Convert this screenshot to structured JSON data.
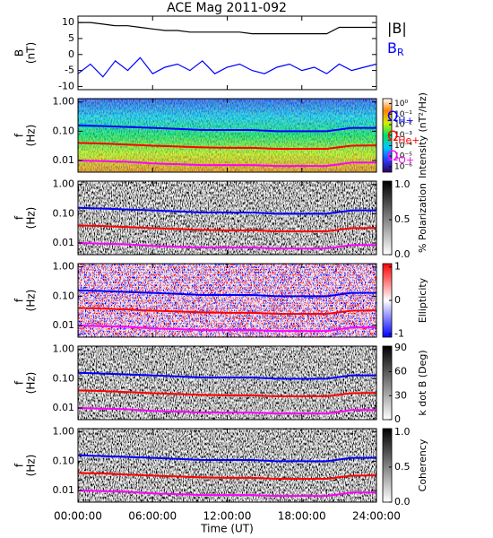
{
  "chart_data": [
    {
      "type": "line",
      "title": "ACE Mag 2011-092",
      "ylabel": [
        "B",
        "(nT)"
      ],
      "x": [
        0,
        1,
        2,
        3,
        4,
        5,
        6,
        7,
        8,
        9,
        10,
        11,
        12,
        13,
        14,
        15,
        16,
        17,
        18,
        19,
        20,
        21,
        22,
        23,
        24
      ],
      "xlim": [
        0,
        24
      ],
      "ylim": [
        -11,
        12
      ],
      "yticks": [
        -10,
        -5,
        0,
        5,
        10
      ],
      "series": [
        {
          "name": "|B|",
          "color": "#000000",
          "values": [
            10,
            10,
            9.5,
            9,
            9,
            8.5,
            8,
            7.5,
            7.5,
            7,
            7,
            7,
            7,
            7,
            6.5,
            6.5,
            6.5,
            6.5,
            6.5,
            6.5,
            6.5,
            8.5,
            8.5,
            8.5,
            8.5
          ]
        },
        {
          "name": "B",
          "name_sub": "R",
          "color": "#0000ff",
          "values": [
            -6,
            -3,
            -7,
            -2,
            -5,
            -1,
            -6,
            -4,
            -3,
            -5,
            -2,
            -6,
            -4,
            -3,
            -5,
            -6,
            -4,
            -3,
            -5,
            -4,
            -6,
            -3,
            -5,
            -4,
            -3
          ]
        }
      ]
    },
    {
      "type": "spectrogram",
      "ylabel": [
        "f",
        "(Hz)"
      ],
      "ylog": true,
      "ylim": [
        0.004,
        1.3
      ],
      "yticks": [
        {
          "value": 1,
          "label": "1.00"
        },
        {
          "value": 0.1,
          "label": "0.10"
        },
        {
          "value": 0.01,
          "label": "0.01"
        }
      ],
      "xlim": [
        0,
        24
      ],
      "x": [
        0,
        2,
        4,
        6,
        8,
        10,
        12,
        14,
        16,
        18,
        20,
        22,
        24
      ],
      "colorbar": {
        "label": "Intensity (nT²/Hz)",
        "log": true,
        "lim": [
          3e-07,
          3
        ],
        "ticks": [
          {
            "value": 1,
            "label": "10⁰"
          },
          {
            "value": 0.1,
            "label": "10⁻¹"
          },
          {
            "value": 0.01,
            "label": "10⁻²"
          },
          {
            "value": 0.001,
            "label": "10⁻³"
          },
          {
            "value": 0.0001,
            "label": "10⁻⁴"
          },
          {
            "value": 1e-05,
            "label": "10⁻⁵"
          },
          {
            "value": 1e-06,
            "label": "10⁻⁶"
          }
        ],
        "colors": [
          "#30005a",
          "#2040ff",
          "#00c8ff",
          "#00e060",
          "#d0f000",
          "#ff8000",
          "#ffffff"
        ]
      },
      "series": [
        {
          "name": "Ω",
          "name_sub": "H+",
          "color": "#0000ff",
          "values": [
            0.16,
            0.15,
            0.14,
            0.13,
            0.12,
            0.11,
            0.11,
            0.11,
            0.1,
            0.1,
            0.1,
            0.13,
            0.13
          ]
        },
        {
          "name": "Ω",
          "name_sub": "He+",
          "color": "#ff0000",
          "values": [
            0.04,
            0.038,
            0.035,
            0.032,
            0.03,
            0.028,
            0.027,
            0.027,
            0.025,
            0.025,
            0.025,
            0.032,
            0.033
          ]
        },
        {
          "name": "Ω",
          "name_sub": "O+",
          "color": "#ff00ff",
          "values": [
            0.01,
            0.0095,
            0.009,
            0.008,
            0.0075,
            0.007,
            0.007,
            0.007,
            0.0065,
            0.0065,
            0.0065,
            0.0085,
            0.0085
          ]
        }
      ]
    },
    {
      "type": "spectrogram",
      "ylabel": [
        "f",
        "(Hz)"
      ],
      "ylog": true,
      "ylim": [
        0.004,
        1.3
      ],
      "yticks": [
        {
          "value": 1,
          "label": "1.00"
        },
        {
          "value": 0.1,
          "label": "0.10"
        },
        {
          "value": 0.01,
          "label": "0.01"
        }
      ],
      "xlim": [
        0,
        24
      ],
      "x": [
        0,
        2,
        4,
        6,
        8,
        10,
        12,
        14,
        16,
        18,
        20,
        22,
        24
      ],
      "colorbar": {
        "label": "% Polarization",
        "lim": [
          0,
          1.05
        ],
        "ticks": [
          {
            "value": 0,
            "label": "0.0"
          },
          {
            "value": 0.5,
            "label": "0.5"
          },
          {
            "value": 1,
            "label": "1.0"
          }
        ],
        "colors": [
          "#ffffff",
          "#000000"
        ]
      },
      "series": [
        {
          "color": "#0000ff",
          "values": [
            0.16,
            0.15,
            0.14,
            0.13,
            0.12,
            0.11,
            0.11,
            0.11,
            0.1,
            0.1,
            0.1,
            0.13,
            0.13
          ]
        },
        {
          "color": "#ff0000",
          "values": [
            0.04,
            0.038,
            0.035,
            0.032,
            0.03,
            0.028,
            0.027,
            0.027,
            0.025,
            0.025,
            0.025,
            0.032,
            0.033
          ]
        },
        {
          "color": "#ff00ff",
          "values": [
            0.01,
            0.0095,
            0.009,
            0.008,
            0.0075,
            0.007,
            0.007,
            0.007,
            0.0065,
            0.0065,
            0.0065,
            0.0085,
            0.0085
          ]
        }
      ]
    },
    {
      "type": "spectrogram",
      "ylabel": [
        "f",
        "(Hz)"
      ],
      "ylog": true,
      "ylim": [
        0.004,
        1.3
      ],
      "yticks": [
        {
          "value": 1,
          "label": "1.00"
        },
        {
          "value": 0.1,
          "label": "0.10"
        },
        {
          "value": 0.01,
          "label": "0.01"
        }
      ],
      "xlim": [
        0,
        24
      ],
      "x": [
        0,
        2,
        4,
        6,
        8,
        10,
        12,
        14,
        16,
        18,
        20,
        22,
        24
      ],
      "colorbar": {
        "label": "Ellipticity",
        "lim": [
          -1.1,
          1.1
        ],
        "ticks": [
          -1,
          0,
          1
        ],
        "colors": [
          "#0000ff",
          "#ffffff",
          "#ff0000"
        ]
      },
      "series": [
        {
          "color": "#0000ff",
          "values": [
            0.16,
            0.15,
            0.14,
            0.13,
            0.12,
            0.11,
            0.11,
            0.11,
            0.1,
            0.1,
            0.1,
            0.13,
            0.13
          ]
        },
        {
          "color": "#ff0000",
          "values": [
            0.04,
            0.038,
            0.035,
            0.032,
            0.03,
            0.028,
            0.027,
            0.027,
            0.025,
            0.025,
            0.025,
            0.032,
            0.033
          ]
        },
        {
          "color": "#ff00ff",
          "values": [
            0.01,
            0.0095,
            0.009,
            0.008,
            0.0075,
            0.007,
            0.007,
            0.007,
            0.0065,
            0.0065,
            0.0065,
            0.0085,
            0.0085
          ]
        }
      ]
    },
    {
      "type": "spectrogram",
      "ylabel": [
        "f",
        "(Hz)"
      ],
      "ylog": true,
      "ylim": [
        0.004,
        1.3
      ],
      "yticks": [
        {
          "value": 1,
          "label": "1.00"
        },
        {
          "value": 0.1,
          "label": "0.10"
        },
        {
          "value": 0.01,
          "label": "0.01"
        }
      ],
      "xlim": [
        0,
        24
      ],
      "x": [
        0,
        2,
        4,
        6,
        8,
        10,
        12,
        14,
        16,
        18,
        20,
        22,
        24
      ],
      "colorbar": {
        "label": "k dot B (Deg)",
        "lim": [
          0,
          92
        ],
        "ticks": [
          0,
          30,
          60,
          90
        ],
        "colors": [
          "#ffffff",
          "#000000"
        ]
      },
      "series": [
        {
          "color": "#0000ff",
          "values": [
            0.16,
            0.15,
            0.14,
            0.13,
            0.12,
            0.11,
            0.11,
            0.11,
            0.1,
            0.1,
            0.1,
            0.13,
            0.13
          ]
        },
        {
          "color": "#ff0000",
          "values": [
            0.04,
            0.038,
            0.035,
            0.032,
            0.03,
            0.028,
            0.027,
            0.027,
            0.025,
            0.025,
            0.025,
            0.032,
            0.033
          ]
        },
        {
          "color": "#ff00ff",
          "values": [
            0.01,
            0.0095,
            0.009,
            0.008,
            0.0075,
            0.007,
            0.007,
            0.007,
            0.0065,
            0.0065,
            0.0065,
            0.0085,
            0.0085
          ]
        }
      ]
    },
    {
      "type": "spectrogram",
      "ylabel": [
        "f",
        "(Hz)"
      ],
      "ylog": true,
      "ylim": [
        0.004,
        1.3
      ],
      "yticks": [
        {
          "value": 1,
          "label": "1.00"
        },
        {
          "value": 0.1,
          "label": "0.10"
        },
        {
          "value": 0.01,
          "label": "0.01"
        }
      ],
      "xlim": [
        0,
        24
      ],
      "x": [
        0,
        2,
        4,
        6,
        8,
        10,
        12,
        14,
        16,
        18,
        20,
        22,
        24
      ],
      "xlabel": "Time (UT)",
      "xticks": [
        {
          "value": 0,
          "label": "00:00:00"
        },
        {
          "value": 6,
          "label": "06:00:00"
        },
        {
          "value": 12,
          "label": "12:00:00"
        },
        {
          "value": 18,
          "label": "18:00:00"
        },
        {
          "value": 24,
          "label": "24:00:00"
        }
      ],
      "colorbar": {
        "label": "Coherency",
        "lim": [
          0,
          1.05
        ],
        "ticks": [
          {
            "value": 0,
            "label": "0.0"
          },
          {
            "value": 0.5,
            "label": "0.5"
          },
          {
            "value": 1,
            "label": "1.0"
          }
        ],
        "colors": [
          "#ffffff",
          "#000000"
        ]
      },
      "series": [
        {
          "color": "#0000ff",
          "values": [
            0.16,
            0.15,
            0.14,
            0.13,
            0.12,
            0.11,
            0.11,
            0.11,
            0.1,
            0.1,
            0.1,
            0.13,
            0.13
          ]
        },
        {
          "color": "#ff0000",
          "values": [
            0.04,
            0.038,
            0.035,
            0.032,
            0.03,
            0.028,
            0.027,
            0.027,
            0.025,
            0.025,
            0.025,
            0.032,
            0.033
          ]
        },
        {
          "color": "#ff00ff",
          "values": [
            0.01,
            0.0095,
            0.009,
            0.008,
            0.0075,
            0.007,
            0.007,
            0.007,
            0.0065,
            0.0065,
            0.0065,
            0.0085,
            0.0085
          ]
        }
      ]
    }
  ]
}
